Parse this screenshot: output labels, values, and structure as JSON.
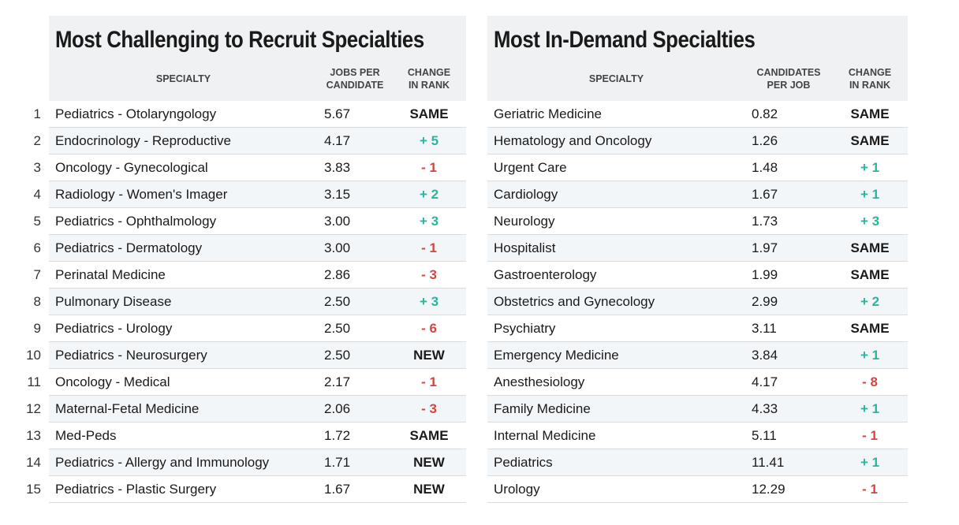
{
  "chart_data": [
    {
      "type": "table",
      "title": "Most Challenging to Recruit Specialties",
      "columns": [
        "SPECIALTY",
        "JOBS PER CANDIDATE",
        "CHANGE IN RANK"
      ],
      "header_lines": {
        "specialty": "SPECIALTY",
        "value1": "JOBS PER",
        "value2": "CANDIDATE",
        "change1": "CHANGE",
        "change2": "IN RANK"
      },
      "rows": [
        {
          "rank": "1",
          "specialty": "Pediatrics - Otolaryngology",
          "value": "5.67",
          "change": "SAME",
          "trend": "flat"
        },
        {
          "rank": "2",
          "specialty": "Endocrinology - Reproductive",
          "value": "4.17",
          "change": "+ 5",
          "trend": "up"
        },
        {
          "rank": "3",
          "specialty": "Oncology - Gynecological",
          "value": "3.83",
          "change": "- 1",
          "trend": "down"
        },
        {
          "rank": "4",
          "specialty": "Radiology - Women's Imager",
          "value": "3.15",
          "change": "+ 2",
          "trend": "up"
        },
        {
          "rank": "5",
          "specialty": "Pediatrics - Ophthalmology",
          "value": "3.00",
          "change": "+ 3",
          "trend": "up"
        },
        {
          "rank": "6",
          "specialty": "Pediatrics - Dermatology",
          "value": "3.00",
          "change": "- 1",
          "trend": "down"
        },
        {
          "rank": "7",
          "specialty": "Perinatal Medicine",
          "value": "2.86",
          "change": "- 3",
          "trend": "down"
        },
        {
          "rank": "8",
          "specialty": "Pulmonary Disease",
          "value": "2.50",
          "change": "+ 3",
          "trend": "up"
        },
        {
          "rank": "9",
          "specialty": "Pediatrics - Urology",
          "value": "2.50",
          "change": "- 6",
          "trend": "down"
        },
        {
          "rank": "10",
          "specialty": "Pediatrics - Neurosurgery",
          "value": "2.50",
          "change": "NEW",
          "trend": "new"
        },
        {
          "rank": "11",
          "specialty": "Oncology - Medical",
          "value": "2.17",
          "change": "- 1",
          "trend": "down"
        },
        {
          "rank": "12",
          "specialty": "Maternal-Fetal Medicine",
          "value": "2.06",
          "change": "- 3",
          "trend": "down"
        },
        {
          "rank": "13",
          "specialty": "Med-Peds",
          "value": "1.72",
          "change": "SAME",
          "trend": "flat"
        },
        {
          "rank": "14",
          "specialty": "Pediatrics - Allergy and Immunology",
          "value": "1.71",
          "change": "NEW",
          "trend": "new"
        },
        {
          "rank": "15",
          "specialty": "Pediatrics - Plastic Surgery",
          "value": "1.67",
          "change": "NEW",
          "trend": "new"
        }
      ]
    },
    {
      "type": "table",
      "title": "Most In-Demand Specialties",
      "columns": [
        "SPECIALTY",
        "CANDIDATES PER JOB",
        "CHANGE IN RANK"
      ],
      "header_lines": {
        "specialty": "SPECIALTY",
        "value1": "CANDIDATES",
        "value2": "PER JOB",
        "change1": "CHANGE",
        "change2": "IN RANK"
      },
      "rows": [
        {
          "specialty": "Geriatric Medicine",
          "value": "0.82",
          "change": "SAME",
          "trend": "flat"
        },
        {
          "specialty": "Hematology and Oncology",
          "value": "1.26",
          "change": "SAME",
          "trend": "flat"
        },
        {
          "specialty": "Urgent Care",
          "value": "1.48",
          "change": "+ 1",
          "trend": "up"
        },
        {
          "specialty": "Cardiology",
          "value": "1.67",
          "change": "+ 1",
          "trend": "up"
        },
        {
          "specialty": "Neurology",
          "value": "1.73",
          "change": "+ 3",
          "trend": "up"
        },
        {
          "specialty": "Hospitalist",
          "value": "1.97",
          "change": "SAME",
          "trend": "flat"
        },
        {
          "specialty": "Gastroenterology",
          "value": "1.99",
          "change": "SAME",
          "trend": "flat"
        },
        {
          "specialty": "Obstetrics and Gynecology",
          "value": "2.99",
          "change": "+ 2",
          "trend": "up"
        },
        {
          "specialty": "Psychiatry",
          "value": "3.11",
          "change": "SAME",
          "trend": "flat"
        },
        {
          "specialty": "Emergency Medicine",
          "value": "3.84",
          "change": "+ 1",
          "trend": "up"
        },
        {
          "specialty": "Anesthesiology",
          "value": "4.17",
          "change": "- 8",
          "trend": "down"
        },
        {
          "specialty": "Family Medicine",
          "value": "4.33",
          "change": "+ 1",
          "trend": "up"
        },
        {
          "specialty": "Internal Medicine",
          "value": "5.11",
          "change": "- 1",
          "trend": "down"
        },
        {
          "specialty": "Pediatrics",
          "value": "11.41",
          "change": "+ 1",
          "trend": "up"
        },
        {
          "specialty": "Urology",
          "value": "12.29",
          "change": "- 1",
          "trend": "down"
        }
      ]
    }
  ],
  "colors": {
    "up": "#2bb59a",
    "down": "#d24640",
    "header_bg": "#f0f1f2",
    "alt_row_bg": "#f3f6f9"
  }
}
